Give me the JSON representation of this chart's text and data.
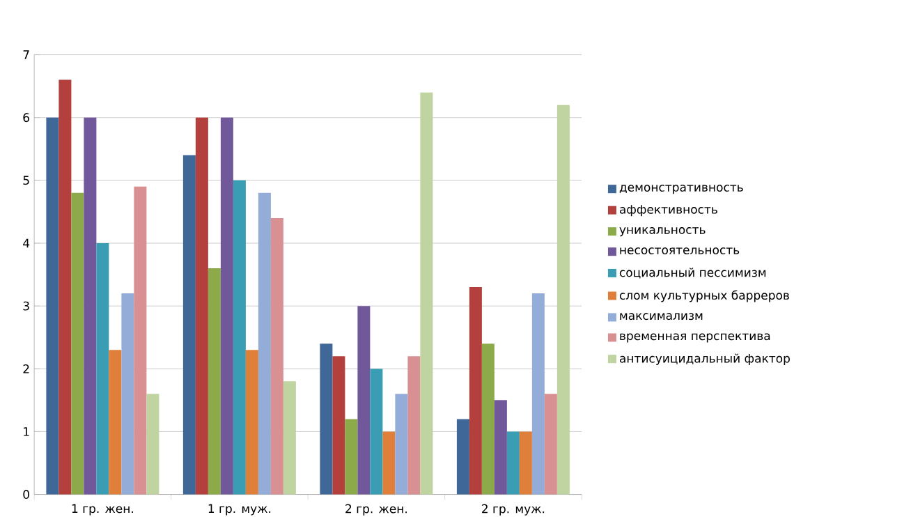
{
  "chart_data": {
    "type": "bar",
    "categories": [
      "1 гр. жен.",
      "1 гр. муж.",
      "2 гр. жен.",
      "2 гр. муж."
    ],
    "series": [
      {
        "name": "демонстративность",
        "color": "#3f6797",
        "values": [
          6.0,
          5.4,
          2.4,
          1.2
        ]
      },
      {
        "name": "аффективность",
        "color": "#b3403d",
        "values": [
          6.6,
          6.0,
          2.2,
          3.3
        ]
      },
      {
        "name": "уникальность",
        "color": "#8caa4a",
        "values": [
          4.8,
          3.6,
          1.2,
          2.4
        ]
      },
      {
        "name": "несостоятельность",
        "color": "#71589a",
        "values": [
          6.0,
          6.0,
          3.0,
          1.5
        ]
      },
      {
        "name": "социальный пессимизм",
        "color": "#3a9db4",
        "values": [
          4.0,
          5.0,
          2.0,
          1.0
        ]
      },
      {
        "name": "слом культурных барреров",
        "color": "#e07f3a",
        "values": [
          2.3,
          2.3,
          1.0,
          1.0
        ]
      },
      {
        "name": "максимализм",
        "color": "#93acd8",
        "values": [
          3.2,
          4.8,
          1.6,
          3.2
        ]
      },
      {
        "name": "временная перспектива",
        "color": "#d99093",
        "values": [
          4.9,
          4.4,
          2.2,
          1.6
        ]
      },
      {
        "name": "антисуицидальный фактор",
        "color": "#bfd4a0",
        "values": [
          1.6,
          1.8,
          6.4,
          6.2
        ]
      }
    ],
    "ylim": [
      0,
      7
    ],
    "yticks": [
      0,
      1,
      2,
      3,
      4,
      5,
      6,
      7
    ],
    "grid": "y",
    "legend": "right"
  }
}
